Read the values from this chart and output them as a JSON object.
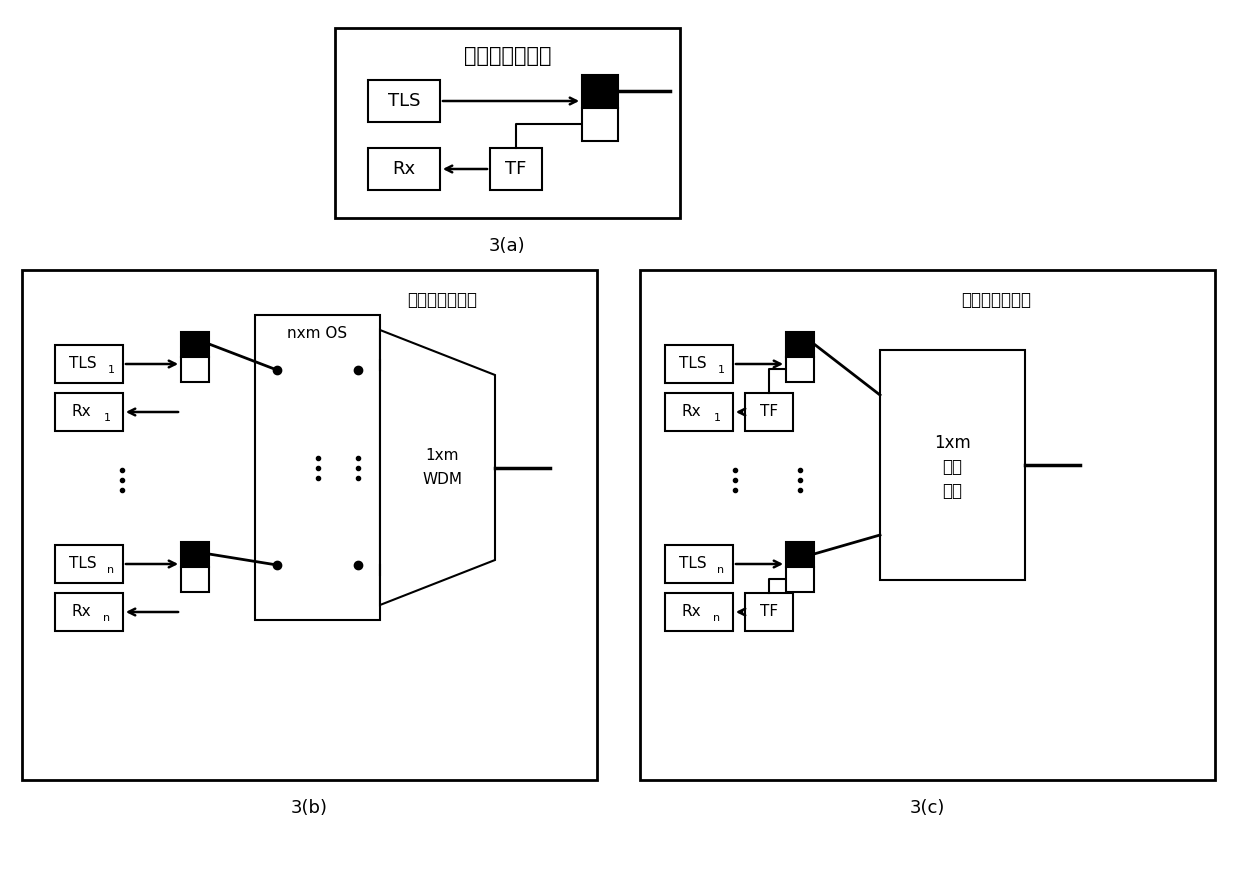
{
  "bg_color": "#ffffff",
  "label_backup": "备用光收发模块",
  "label_1xm_coupler_line1": "1xm",
  "label_1xm_coupler_line2": "光耦",
  "label_1xm_coupler_line3": "合器",
  "title_3a": "3(a)",
  "title_3b": "3(b)",
  "title_3c": "3(c)"
}
